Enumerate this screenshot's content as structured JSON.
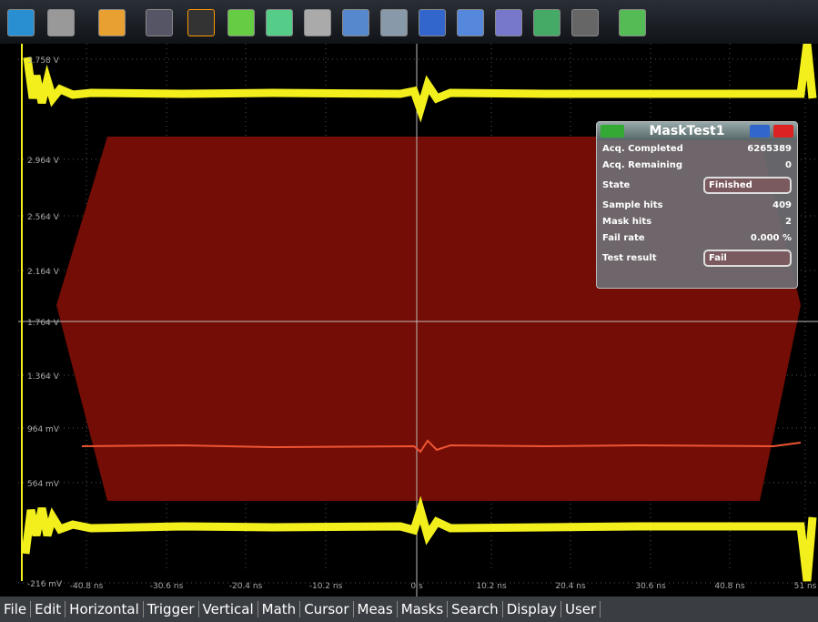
{
  "menu": [
    "File",
    "Edit",
    "Horizontal",
    "Trigger",
    "Vertical",
    "Math",
    "Cursor",
    "Meas",
    "Masks",
    "Search",
    "Display",
    "User"
  ],
  "y_axis_labels": [
    "3.758 V",
    "2.964 V",
    "2.564 V",
    "2.164 V",
    "1.764 V",
    "1.364 V",
    "964 mV",
    "564 mV",
    "-216 mV"
  ],
  "x_axis_labels": [
    "-40.8 ns",
    "-30.6 ns",
    "-20.4 ns",
    "-10.2 ns",
    "0 s",
    "10.2 ns",
    "20.4 ns",
    "30.6 ns",
    "40.8 ns",
    "51 ns"
  ],
  "dialog": {
    "title": "MaskTest1",
    "rows": [
      {
        "label": "Acq. Completed",
        "value": 6265389
      },
      {
        "label": "Acq. Remaining",
        "value": 0
      },
      {
        "label": "State",
        "value": "Finished"
      },
      {
        "label": "Sample hits",
        "value": 409
      },
      {
        "label": "Mask hits",
        "value": 2
      },
      {
        "label": "Fail rate",
        "value": "0.000 %"
      },
      {
        "label": "Test result",
        "value": "Fail"
      }
    ]
  }
}
